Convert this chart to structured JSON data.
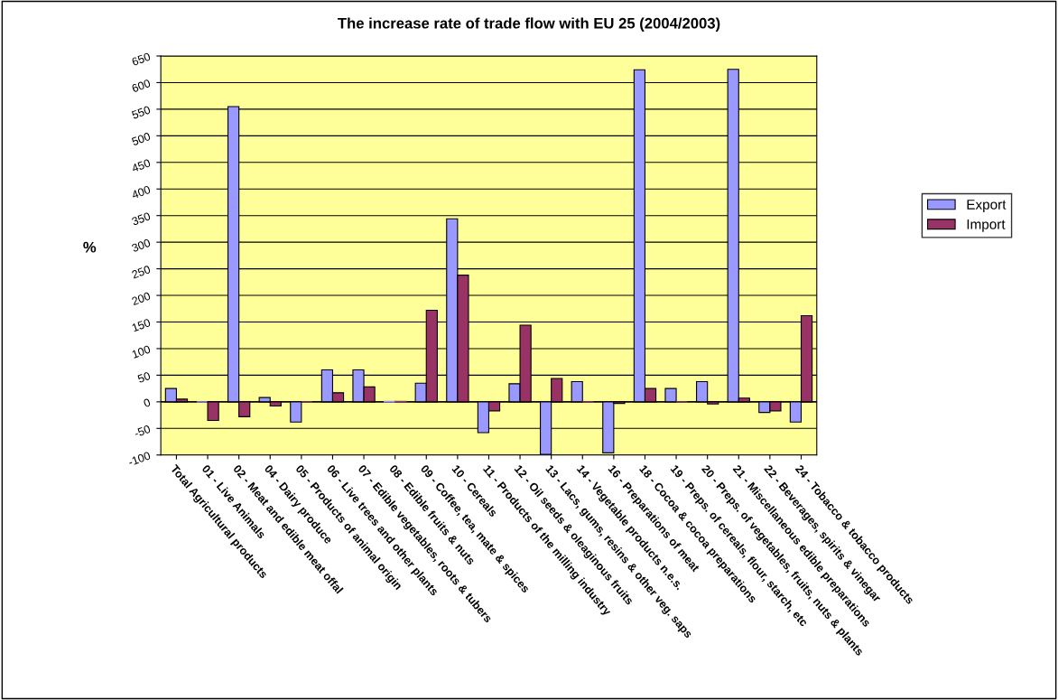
{
  "chart_data": {
    "type": "bar",
    "title": "The increase rate of trade flow with EU 25 (2004/2003)",
    "ylabel": "%",
    "categories": [
      "Total Agricultural products",
      "01 - Live Animals",
      "02 - Meat and edible meat offal",
      "04 - Dairy produce",
      "05 - Products of animal origin",
      "06 - Live trees and other plants",
      "07 - Edible vegetables, roots & tubers",
      "08 - Edible fruits & nuts",
      "09 - Coffee, tea, mate & spices",
      "10 - Cereals",
      "11 - Products of the milling industry",
      "12 - Oil seeds & oleaginous fruits",
      "13 - Lacs, gums, resins & other veg. saps",
      "14 - Vegetable products n.e.s.",
      "16 - Preparations of meat",
      "18 - Cocoa & cocoa preparations",
      "19 - Preps. of cereals, flour, starch, etc",
      "20 - Preps. of vegetables, fruits, nuts & plants",
      "21 - Miscellaneous edible preparations",
      "22 - Beverages, spirits & vinegar",
      "24 - Tobacco & tobacco products"
    ],
    "series": [
      {
        "name": "Export",
        "color": "#9999ff",
        "values": [
          25,
          0,
          555,
          8,
          -38,
          60,
          60,
          1,
          35,
          344,
          -58,
          34,
          -99,
          38,
          -96,
          624,
          25,
          38,
          625,
          -20,
          -38
        ]
      },
      {
        "name": "Import",
        "color": "#993366",
        "values": [
          5,
          -35,
          -28,
          -8,
          0,
          17,
          28,
          1,
          172,
          238,
          -17,
          144,
          44,
          0,
          -3,
          25,
          0,
          -4,
          7,
          -17,
          162
        ]
      }
    ],
    "ylim": [
      -100,
      650
    ],
    "yticks": [
      -100,
      -50,
      0,
      50,
      100,
      150,
      200,
      250,
      300,
      350,
      400,
      450,
      500,
      550,
      600,
      650
    ],
    "grid": "y",
    "legend": "right"
  }
}
